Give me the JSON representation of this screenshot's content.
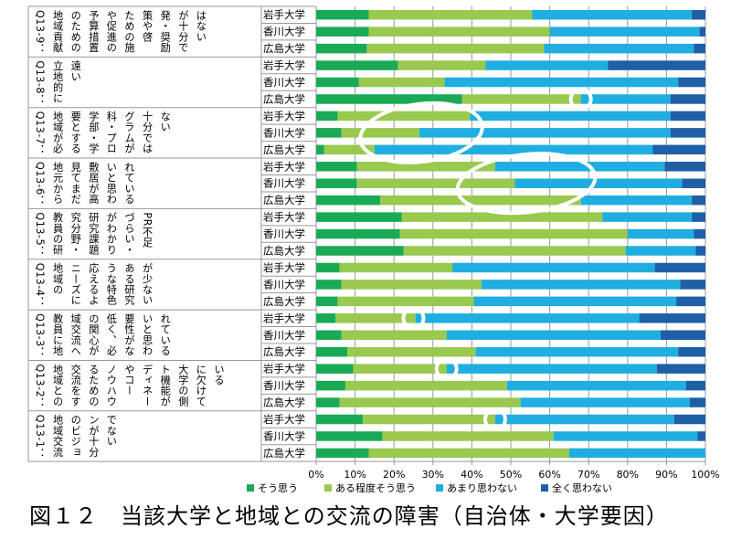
{
  "chart_data": {
    "type": "bar",
    "orientation": "horizontal",
    "stacked_percent": true,
    "title": "",
    "xlabel": "",
    "ylabel": "",
    "xlim": [
      0,
      100
    ],
    "x_ticks": [
      "0%",
      "10%",
      "20%",
      "30%",
      "40%",
      "50%",
      "60%",
      "70%",
      "80%",
      "90%",
      "100%"
    ],
    "categories_universities": [
      "岩手大学",
      "香川大学",
      "広島大学"
    ],
    "colors": {
      "そう思う": "#1aaa55",
      "ある程度そう思う": "#99c94f",
      "あまり思わない": "#20aee0",
      "全く思わない": "#1f5fa6",
      "grid": "#999999",
      "ellipse": "#ffffff"
    },
    "legend": {
      "placement": "bottom",
      "entries": [
        "そう思う",
        "ある程度そう思う",
        "あまり思わない",
        "全く思わない"
      ]
    },
    "groups": [
      {
        "id": "Q13-9",
        "cols": [
          "Q13-9：",
          "地域貢献",
          "のための",
          "予算措置",
          "や促進の",
          "ための施",
          "策や啓",
          "発・奨励",
          "が十分で",
          "はない"
        ]
      },
      {
        "id": "Q13-8",
        "cols": [
          "Q13-8：",
          "立地的に",
          "遠い"
        ]
      },
      {
        "id": "Q13-7",
        "cols": [
          "Q13-7：",
          "地域が必",
          "要とする",
          "学部・学",
          "科・プロ",
          "グラムが",
          "十分では",
          "ない"
        ]
      },
      {
        "id": "Q13-6",
        "cols": [
          "Q13-6：",
          "地元から",
          "見てまだ",
          "敷居が高",
          "いと思わ",
          "れている"
        ]
      },
      {
        "id": "Q13-5",
        "cols": [
          "Q13-5：",
          "教員の研",
          "究分野・",
          "研究課題",
          "がわかり",
          "づらい・",
          "PR不足"
        ]
      },
      {
        "id": "Q13-4",
        "cols": [
          "Q13-4：",
          "地域の",
          "ニーズに",
          "応えるよ",
          "うな特色",
          "ある研究",
          "が少ない"
        ]
      },
      {
        "id": "Q13-3",
        "cols": [
          "Q13-3：",
          "教員に地",
          "域交流へ",
          "の関心が",
          "低く、必",
          "要性がな",
          "いと思わ",
          "れている"
        ]
      },
      {
        "id": "Q13-2",
        "cols": [
          "Q13-2：",
          "地域との",
          "交流をす",
          "るための",
          "ノウハウ",
          "やコー",
          "ディネー",
          "ト機能が",
          "大学の側",
          "に欠けて",
          "いる"
        ]
      },
      {
        "id": "Q13-1",
        "cols": [
          "Q13-1：",
          "地域交流",
          "のビジョ",
          "ンが十分",
          "でない"
        ]
      }
    ],
    "series": [
      {
        "name": "そう思う",
        "values": [
          13.5,
          13.5,
          13,
          21,
          11,
          37.5,
          5.5,
          6.5,
          2,
          10.5,
          10.5,
          16.5,
          22,
          21.5,
          22.5,
          6,
          6.5,
          5.5,
          5,
          6.5,
          8,
          9.5,
          7.5,
          6,
          12,
          17,
          13.5
        ]
      },
      {
        "name": "ある程度そう思う",
        "values": [
          42,
          46.5,
          45.5,
          22.5,
          22,
          30.5,
          34,
          20,
          13,
          35.5,
          40.5,
          51.5,
          51.5,
          58.5,
          57,
          29,
          36,
          35,
          20.5,
          27,
          33,
          24,
          41.5,
          46.5,
          34,
          44,
          51.5
        ]
      },
      {
        "name": "あまり思わない",
        "values": [
          41,
          38.5,
          38.5,
          31.5,
          60,
          23,
          51.5,
          64.5,
          71.5,
          43.5,
          43,
          28.5,
          23,
          17,
          18,
          52,
          51,
          52,
          57.5,
          55,
          52,
          54,
          46,
          43.5,
          46,
          37,
          35
        ]
      },
      {
        "name": "全く思わない",
        "values": [
          3.5,
          1.5,
          3,
          25,
          7,
          9,
          9,
          9,
          13.5,
          10.5,
          6,
          3.5,
          3.5,
          3,
          2.5,
          13,
          6.5,
          7.5,
          17,
          11.5,
          7,
          12.5,
          5,
          4,
          8,
          2,
          0
        ]
      }
    ],
    "highlights": [
      {
        "label": "Q13-8 広島大学 ある程度そう思う/あまり思わない 境界",
        "value": 68,
        "shape": "circle"
      },
      {
        "label": "Q13-7 香川・広島 ある程度そう思う",
        "range": [
          15,
          39
        ],
        "shape": "ellipse"
      },
      {
        "label": "Q13-6 香川・広島 ある程度そう思う/あまり思わない",
        "range": [
          40,
          68
        ],
        "shape": "ellipse"
      },
      {
        "label": "Q13-3 岩手大学",
        "value": 25,
        "shape": "circle"
      },
      {
        "label": "Q13-2 岩手大学",
        "value": 33.5,
        "shape": "circle"
      },
      {
        "label": "Q13-1 岩手大学",
        "value": 46,
        "shape": "circle"
      }
    ]
  },
  "caption": "図１２　当該大学と地域との交流の障害（自治体・大学要因）"
}
